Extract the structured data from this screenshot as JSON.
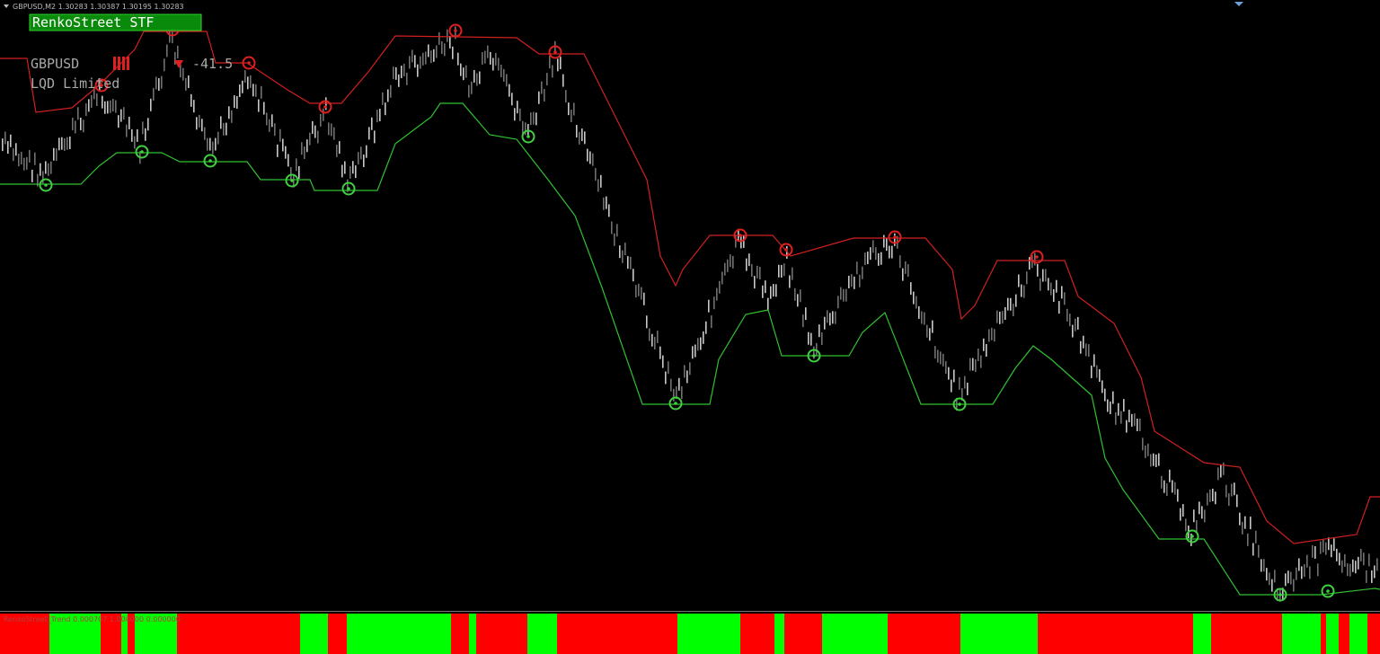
{
  "window": {
    "title": "GBPUSD,M2  1.30283 1.30387 1.30195 1.30283"
  },
  "panel": {
    "badge": "RenkoStreet STF",
    "symbol": "GBPUSD",
    "value": "-41.5",
    "company": "LQD Limited"
  },
  "indicator": {
    "label": "RenkoStreet_Trend 0.000707 1.000000 0.000000"
  }
}
